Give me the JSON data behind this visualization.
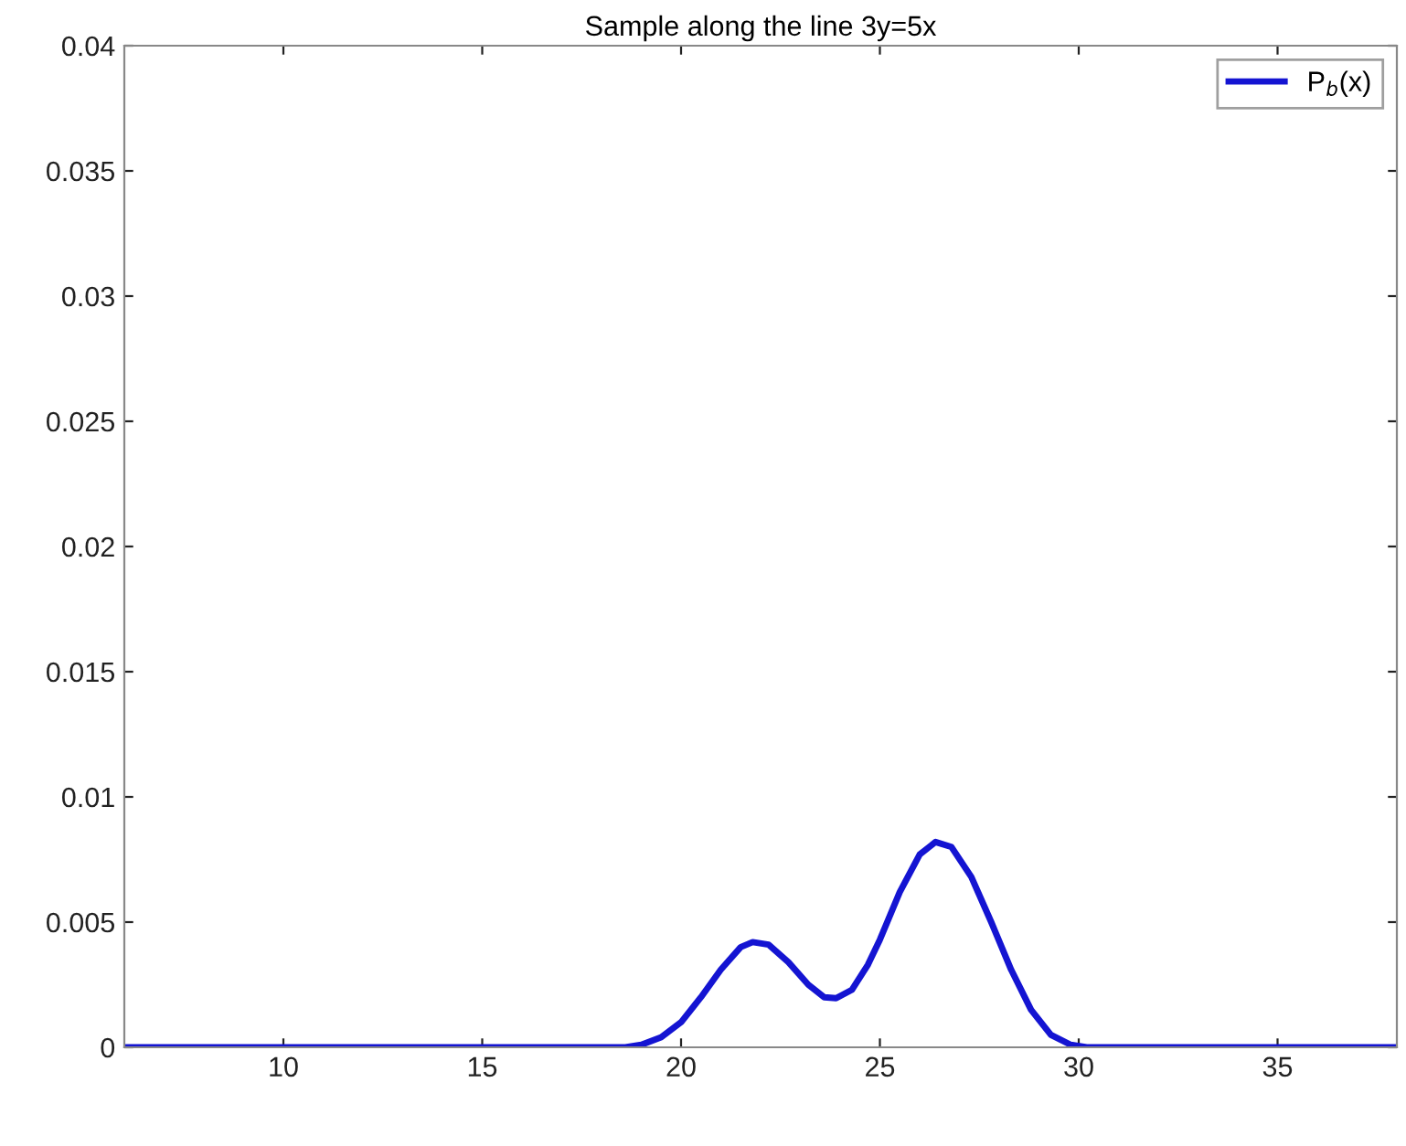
{
  "chart_data": {
    "type": "line",
    "title": "Sample along the line 3y=5x",
    "x": [
      6,
      12,
      18.6,
      19.0,
      19.5,
      20,
      20.5,
      21,
      21.5,
      21.8,
      22.2,
      22.7,
      23.2,
      23.6,
      23.9,
      24.3,
      24.7,
      25,
      25.5,
      26,
      26.4,
      26.8,
      27.3,
      27.8,
      28.3,
      28.8,
      29.3,
      29.8,
      30.2,
      38
    ],
    "series": [
      {
        "name": "P$_{b}$(x)",
        "color": "#1414d2",
        "values": [
          0,
          0,
          0,
          0.0001,
          0.0004,
          0.001,
          0.002,
          0.0031,
          0.004,
          0.0042,
          0.0041,
          0.0034,
          0.0025,
          0.002,
          0.00196,
          0.0023,
          0.0033,
          0.0043,
          0.0062,
          0.0077,
          0.0082,
          0.008,
          0.0068,
          0.005,
          0.0031,
          0.0015,
          0.0005,
          0.0001,
          0,
          0
        ]
      }
    ],
    "xlim": [
      6,
      38
    ],
    "ylim": [
      0,
      0.04
    ],
    "xticks": [
      10,
      15,
      20,
      25,
      30,
      35
    ],
    "yticks": [
      0,
      0.005,
      0.01,
      0.015,
      0.02,
      0.025,
      0.03,
      0.035,
      0.04
    ],
    "grid": false,
    "legend": "top right",
    "line_style": "solid",
    "marker": "none"
  }
}
